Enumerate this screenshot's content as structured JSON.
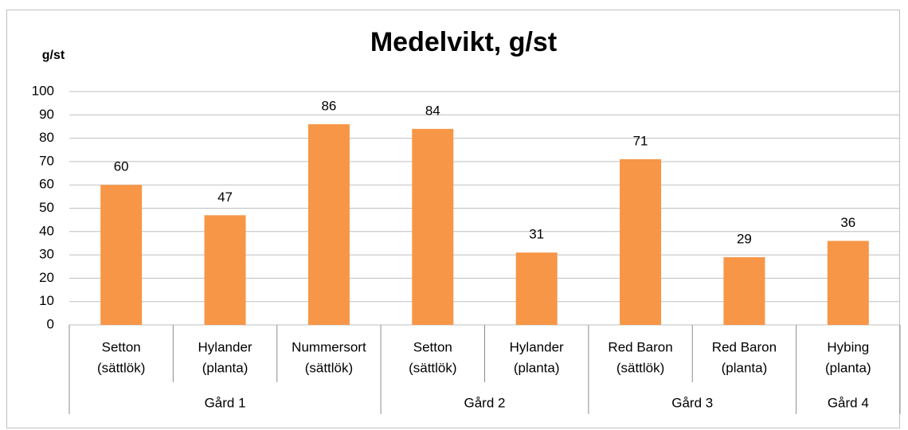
{
  "chart_data": {
    "type": "bar",
    "title": "Medelvikt, g/st",
    "y_label": "g/st",
    "color": "#f79646",
    "groups": [
      {
        "name": "Gård 1",
        "categories": [
          [
            "Setton",
            "(sättlök)"
          ],
          [
            "Hylander",
            "(planta)"
          ],
          [
            "Nummersort",
            "(sättlök)"
          ]
        ],
        "values": [
          60,
          47,
          86
        ]
      },
      {
        "name": "Gård 2",
        "categories": [
          [
            "Setton",
            "(sättlök)"
          ],
          [
            "Hylander",
            "(planta)"
          ]
        ],
        "values": [
          84,
          31
        ]
      },
      {
        "name": "Gård 3",
        "categories": [
          [
            "Red Baron",
            "(sättlök)"
          ],
          [
            "Red Baron",
            "(planta)"
          ]
        ],
        "values": [
          71,
          29
        ]
      },
      {
        "name": "Gård 4",
        "categories": [
          [
            "Hybing",
            "(planta)"
          ]
        ],
        "values": [
          36
        ]
      }
    ],
    "ylim": [
      0,
      100
    ],
    "yticks": [
      0,
      10,
      20,
      30,
      40,
      50,
      60,
      70,
      80,
      90,
      100
    ],
    "grid": true
  }
}
